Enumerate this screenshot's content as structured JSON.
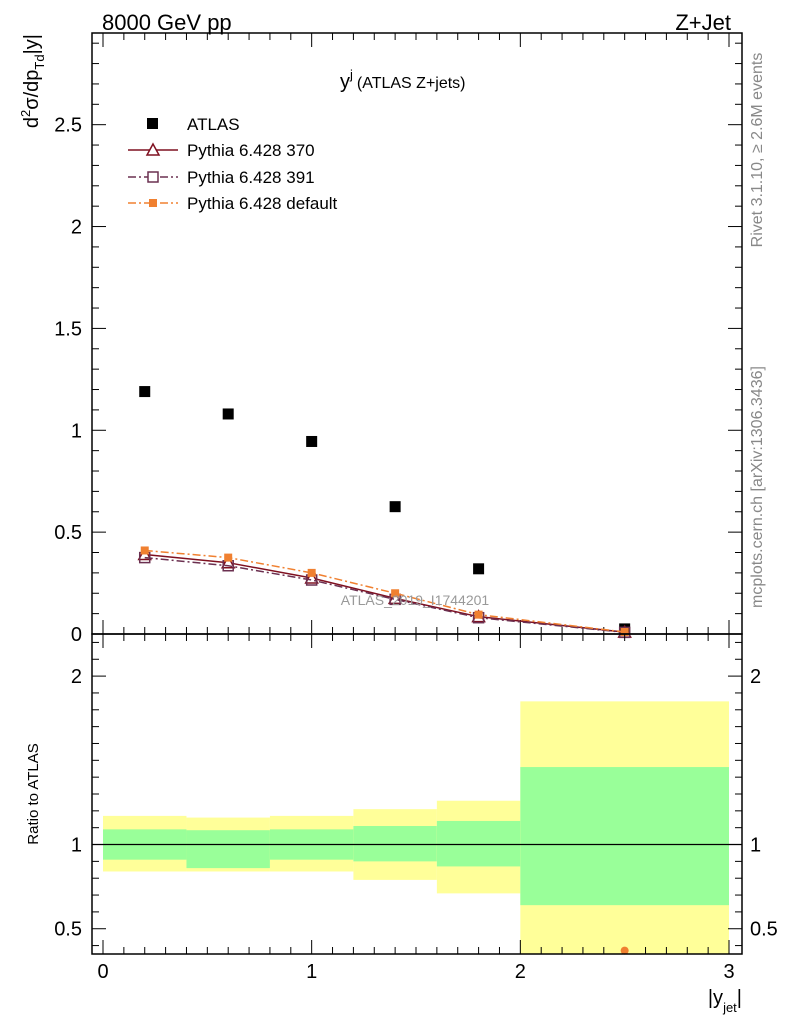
{
  "header": {
    "left": "8000 GeV pp",
    "right": "Z+Jet"
  },
  "side_labels": {
    "rivet": "Rivet 3.1.10, ≥ 2.6M events",
    "mcplots": "mcplots.cern.ch [arXiv:1306.3436]"
  },
  "chart_data": [
    {
      "type": "scatter",
      "title": "y",
      "title_sup": "j",
      "title_suffix": "(ATLAS Z+jets)",
      "xlabel": "|y",
      "xlabel_sub": "jet",
      "xlabel_end": "|",
      "ylabel": "d",
      "ylabel_sup": "2",
      "ylabel_mid": "σ/dp",
      "ylabel_sub": "Td",
      "ylabel_end": "|y|",
      "xlim": [
        0,
        3
      ],
      "ylim": [
        0,
        2.95
      ],
      "watermark": "ATLAS_2019_I1744201",
      "y_ticks": [
        "0",
        "0.5",
        "1",
        "1.5",
        "2",
        "2.5"
      ],
      "legend_position": "top-left",
      "series": [
        {
          "name": "ATLAS",
          "color": "#000000",
          "marker": "filled-square",
          "line": "none",
          "x": [
            0.2,
            0.6,
            1.0,
            1.4,
            1.8,
            2.5
          ],
          "y": [
            1.19,
            1.08,
            0.945,
            0.625,
            0.32,
            0.025
          ]
        },
        {
          "name": "Pythia 6.428 370",
          "color": "#7f1020",
          "marker": "open-triangle",
          "line": "solid",
          "x": [
            0.2,
            0.6,
            1.0,
            1.4,
            1.8,
            2.5
          ],
          "y": [
            0.39,
            0.35,
            0.275,
            0.175,
            0.085,
            0.009
          ]
        },
        {
          "name": "Pythia 6.428 391",
          "color": "#6b3050",
          "marker": "open-square",
          "line": "dashdot",
          "x": [
            0.2,
            0.6,
            1.0,
            1.4,
            1.8,
            2.5
          ],
          "y": [
            0.375,
            0.335,
            0.265,
            0.17,
            0.08,
            0.008
          ]
        },
        {
          "name": "Pythia 6.428 default",
          "color": "#f08030",
          "marker": "filled-square-small",
          "line": "dashdot",
          "x": [
            0.2,
            0.6,
            1.0,
            1.4,
            1.8,
            2.5
          ],
          "y": [
            0.41,
            0.375,
            0.3,
            0.2,
            0.095,
            0.01
          ]
        }
      ]
    },
    {
      "type": "area",
      "ylabel": "Ratio to ATLAS",
      "ylim": [
        0.35,
        2.25
      ],
      "xlim": [
        0,
        3
      ],
      "x_ticks": [
        "0",
        "1",
        "2",
        "3"
      ],
      "y_ticks": [
        "0.5",
        "1",
        "2"
      ],
      "reference_line": 1.0,
      "bins": [
        {
          "x_lo": 0.0,
          "x_hi": 0.4,
          "inner": [
            0.91,
            1.09
          ],
          "outer": [
            0.84,
            1.17
          ]
        },
        {
          "x_lo": 0.4,
          "x_hi": 0.8,
          "inner": [
            0.86,
            1.085
          ],
          "outer": [
            0.84,
            1.16
          ]
        },
        {
          "x_lo": 0.8,
          "x_hi": 1.2,
          "inner": [
            0.91,
            1.09
          ],
          "outer": [
            0.84,
            1.17
          ]
        },
        {
          "x_lo": 1.2,
          "x_hi": 1.6,
          "inner": [
            0.9,
            1.11
          ],
          "outer": [
            0.79,
            1.21
          ]
        },
        {
          "x_lo": 1.6,
          "x_hi": 2.0,
          "inner": [
            0.87,
            1.14
          ],
          "outer": [
            0.71,
            1.26
          ]
        },
        {
          "x_lo": 2.0,
          "x_hi": 3.0,
          "inner": [
            0.64,
            1.46
          ],
          "outer": [
            0.35,
            1.85
          ]
        }
      ],
      "band_colors": {
        "inner": "#99ff99",
        "outer": "#ffff99"
      },
      "ratio_points": [
        {
          "series": "Pythia 6.428 default",
          "x": 2.5,
          "y": 0.37,
          "color": "#f08030"
        }
      ]
    }
  ]
}
